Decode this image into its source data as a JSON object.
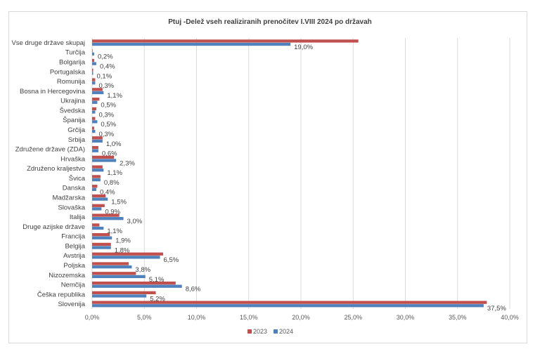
{
  "chart_data": {
    "type": "bar",
    "orientation": "horizontal",
    "title": "Ptuj -Delež vseh realiziranih prenočitev I.VIII 2024 po državah",
    "xlabel": "",
    "ylabel": "",
    "xlim": [
      0,
      40
    ],
    "x_ticks": [
      "0,0%",
      "5,0%",
      "10,0%",
      "15,0%",
      "20,0%",
      "25,0%",
      "30,0%",
      "35,0%",
      "40,0%"
    ],
    "grid": true,
    "legend_position": "bottom",
    "categories": [
      "Vse druge države skupaj",
      "Turčija",
      "Bolgarija",
      "Portugalska",
      "Romunija",
      "Bosna in Hercegovina",
      "Ukrajina",
      "Švedska",
      "Španija",
      "Grčija",
      "Srbija",
      "Združene države (ZDA)",
      "Hrvaška",
      "Združeno kraljestvo",
      "Švica",
      "Danska",
      "Madžarska",
      "Slovaška",
      "Italija",
      "Druge azijske države",
      "Francija",
      "Belgija",
      "Avstrija",
      "Poljska",
      "Nizozemska",
      "Nemčija",
      "Češka republika",
      "Slovenija"
    ],
    "series": [
      {
        "name": "2023",
        "color": "#c0504d",
        "values": [
          25.5,
          0.05,
          0.2,
          0.1,
          0.3,
          1.0,
          0.7,
          0.4,
          0.3,
          0.2,
          1.0,
          0.6,
          2.1,
          1.0,
          0.8,
          0.5,
          1.3,
          1.2,
          2.6,
          0.7,
          1.7,
          1.8,
          6.8,
          3.5,
          4.2,
          8.0,
          6.1,
          37.8
        ]
      },
      {
        "name": "2024",
        "color": "#4f81bd",
        "values": [
          19.0,
          0.2,
          0.4,
          0.1,
          0.3,
          1.1,
          0.5,
          0.3,
          0.5,
          0.3,
          1.0,
          0.6,
          2.3,
          1.1,
          0.8,
          0.4,
          1.5,
          0.9,
          3.0,
          1.1,
          1.9,
          1.8,
          6.5,
          3.8,
          5.1,
          8.6,
          5.2,
          37.5
        ],
        "labels": [
          "19,0%",
          "0,2%",
          "0,4%",
          "0,1%",
          "0,3%",
          "1,1%",
          "0,5%",
          "0,3%",
          "0,5%",
          "0,3%",
          "1,0%",
          "0,6%",
          "2,3%",
          "1,1%",
          "0,8%",
          "0,4%",
          "1,5%",
          "0,9%",
          "3,0%",
          "1,1%",
          "1,9%",
          "1,8%",
          "6,5%",
          "3,8%",
          "5,1%",
          "8,6%",
          "5,2%",
          "37,5%"
        ]
      }
    ]
  }
}
